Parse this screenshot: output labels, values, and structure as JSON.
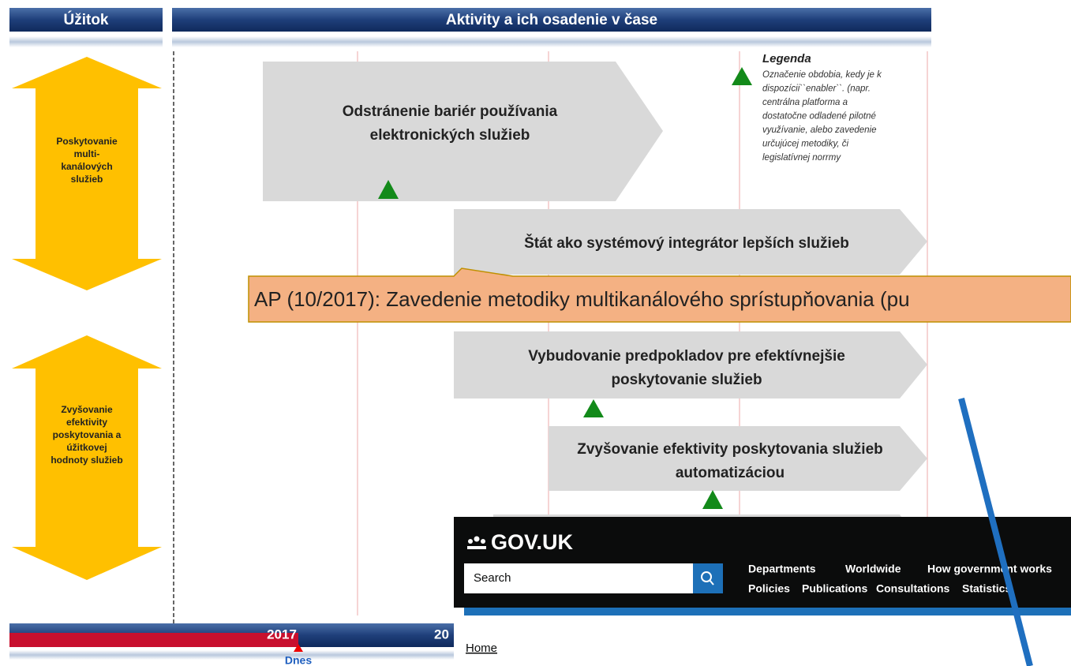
{
  "header": {
    "benefit": "Úžitok",
    "activities": "Aktivity a ich osadenie v čase"
  },
  "benefits": [
    {
      "lines": [
        "Poskytovanie",
        "multi-",
        "kanálových",
        "služieb"
      ]
    },
    {
      "lines": [
        "Zvyšovanie",
        "efektivity",
        "poskytovania a",
        "úžitkovej",
        "hodnoty služieb"
      ]
    }
  ],
  "activities": [
    {
      "lines": [
        "Odstránenie bariér používania",
        "elektronických služieb"
      ]
    },
    {
      "lines": [
        "Štát ako systémový integrátor lepších služieb"
      ]
    },
    {
      "lines": [
        "Vybudovanie predpokladov pre efektívnejšie",
        "poskytovanie služieb"
      ]
    },
    {
      "lines": [
        "Zvyšovanie efektivity poskytovania služieb",
        "automatizáciou"
      ]
    }
  ],
  "legend": {
    "title": "Legenda",
    "lines": [
      "Označenie obdobia, kedy je k",
      "dispozícii``enabler``. (napr.",
      "centrálna platforma a",
      "dostatočne odladené pilotné",
      "využívanie, alebo zavedenie",
      "určujúcej metodiky, či",
      "legislatívnej norrmy"
    ]
  },
  "callout": "AP (10/2017): Zavedenie metodiky multikanálového sprístupňovania (pu",
  "timeline": {
    "years": [
      "2017",
      "20"
    ],
    "today": "Dnes"
  },
  "govuk": {
    "logo": "GOV.UK",
    "search": "Search",
    "nav": [
      [
        "Departments",
        "Worldwide",
        "How government works"
      ],
      [
        "Policies",
        "Publications",
        "Consultations",
        "Statistics"
      ]
    ],
    "breadcrumb": "Home"
  }
}
